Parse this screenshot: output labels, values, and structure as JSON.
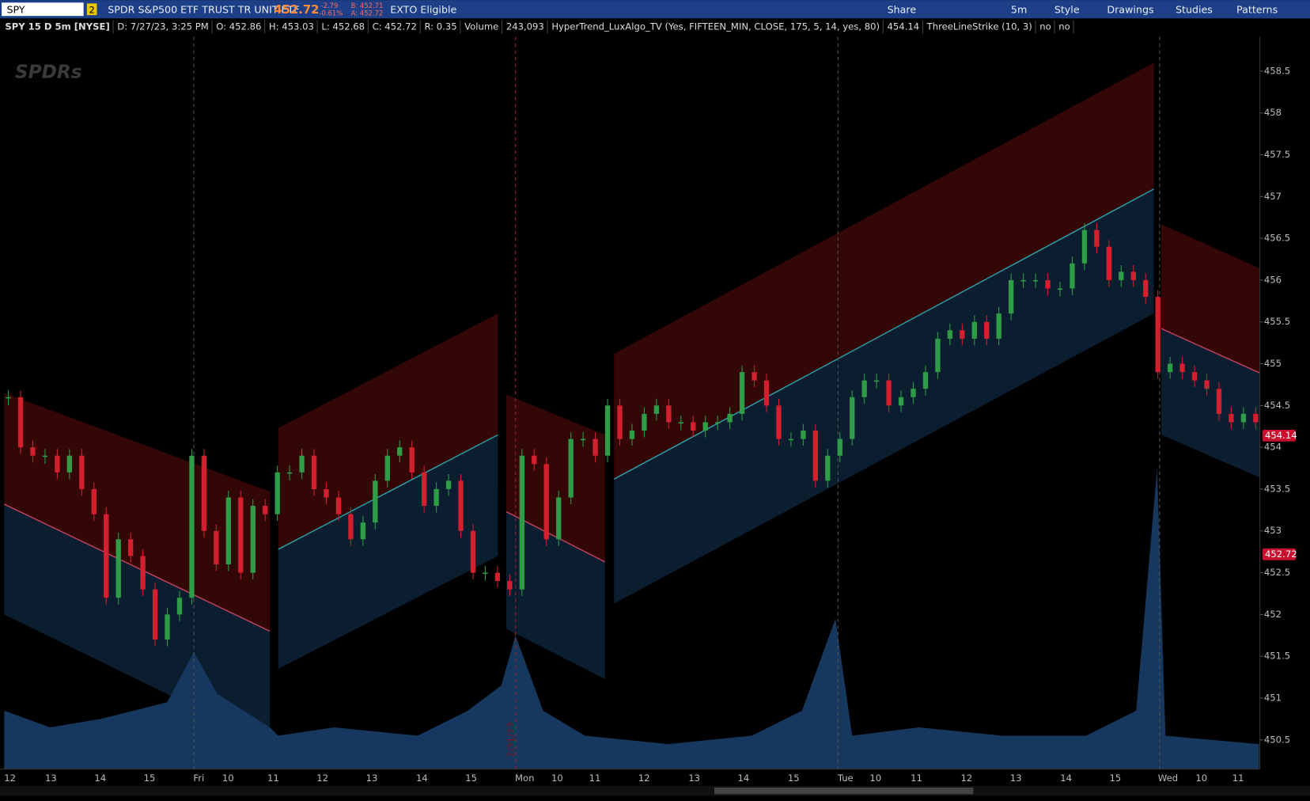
{
  "toolbar": {
    "symbol": "SPY",
    "badge": "2",
    "description": "SPDR S&P500 ETF TRUST TR UNIT ETF",
    "last": "452.72",
    "change": "-2.79",
    "change_pct": "-0.61%",
    "bid": "B: 452.71",
    "ask": "A: 452.72",
    "eligibility": "EXTO Eligible",
    "buttons": [
      "Share",
      "5m",
      "Style",
      "Drawings",
      "Studies",
      "Patterns"
    ]
  },
  "info_bar": {
    "title": "SPY 15 D 5m [NYSE]",
    "date": "D: 7/27/23, 3:25 PM",
    "open": "O: 452.86",
    "high": "H: 453.03",
    "low": "L: 452.68",
    "close": "C: 452.72",
    "range": "R: 0.35",
    "volume_label": "Volume",
    "volume": "243,093",
    "study1": "HyperTrend_LuxAlgo_TV (Yes, FIFTEEN_MIN, CLOSE, 175, 5, 14, yes, 80)",
    "study1_value": "454.14",
    "study2": "ThreeLineStrike (10, 3)",
    "study2_a": "no",
    "study2_b": "no"
  },
  "chart_data": {
    "type": "candlestick",
    "logo": "SPDRs",
    "date_marker": "7/31/23",
    "x_labels": [
      "12",
      "13",
      "14",
      "15",
      "Fri",
      "10",
      "11",
      "12",
      "13",
      "14",
      "15",
      "Mon",
      "10",
      "11",
      "12",
      "13",
      "14",
      "15",
      "Tue",
      "10",
      "11",
      "12",
      "13",
      "14",
      "15",
      "Wed",
      "10",
      "11"
    ],
    "close": [
      454.6,
      454.0,
      453.9,
      453.9,
      453.7,
      453.9,
      453.5,
      453.2,
      452.2,
      452.9,
      452.7,
      452.3,
      451.7,
      452.0,
      452.2,
      453.9,
      453.0,
      452.6,
      453.4,
      452.5,
      453.3,
      453.2,
      453.7,
      453.7,
      453.9,
      453.5,
      453.4,
      453.2,
      452.9,
      453.1,
      453.6,
      453.9,
      454.0,
      453.7,
      453.3,
      453.5,
      453.6,
      453.0,
      452.5,
      452.5,
      452.4,
      452.3,
      453.9,
      453.8,
      452.9,
      453.4,
      454.1,
      454.1,
      453.9,
      454.5,
      454.1,
      454.2,
      454.4,
      454.5,
      454.3,
      454.3,
      454.2,
      454.3,
      454.3,
      454.4,
      454.9,
      454.8,
      454.5,
      454.1,
      454.1,
      454.2,
      453.6,
      453.9,
      454.1,
      454.6,
      454.8,
      454.8,
      454.5,
      454.6,
      454.7,
      454.9,
      455.3,
      455.4,
      455.3,
      455.5,
      455.3,
      455.6,
      456.0,
      456.0,
      456.0,
      455.9,
      455.9,
      456.2,
      456.6,
      456.4,
      456.0,
      456.1,
      456.0,
      455.8,
      454.9,
      455.0,
      454.9,
      454.8,
      454.7,
      454.4,
      454.3,
      454.4,
      454.3
    ],
    "up_color": "#2f9c48",
    "down_color": "#d3202f",
    "ylim": [
      450.1,
      458.8
    ],
    "yticks": [
      450.5,
      451,
      451.5,
      452,
      452.5,
      453,
      453.5,
      454,
      454.5,
      455,
      455.5,
      456,
      456.5,
      457,
      457.5,
      458,
      458.5
    ],
    "price_tags": [
      {
        "value": 454.14,
        "label": "454.14"
      },
      {
        "value": 452.72,
        "label": "452.72"
      }
    ]
  }
}
